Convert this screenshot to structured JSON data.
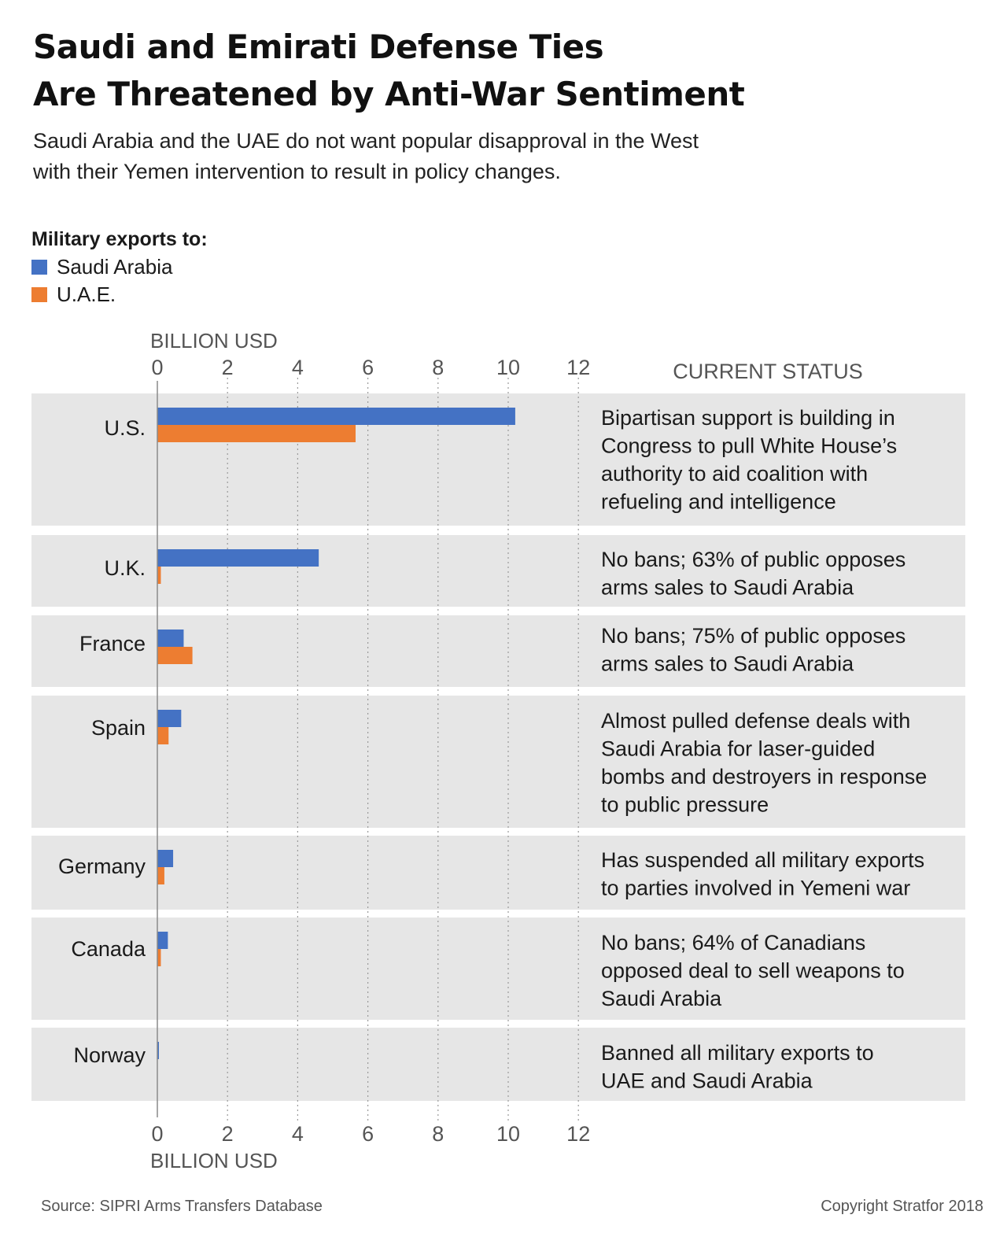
{
  "title_lines": [
    "Saudi and Emirati Defense Ties",
    "Are Threatened by Anti-War Sentiment"
  ],
  "subtitle_lines": [
    "Saudi Arabia and the UAE do not want popular disapproval in the West",
    "with their Yemen intervention to result in policy changes."
  ],
  "legend": {
    "title": "Military exports to:",
    "items": [
      {
        "label": "Saudi Arabia",
        "color": "#4472c4"
      },
      {
        "label": "U.A.E.",
        "color": "#ed7d31"
      }
    ]
  },
  "status_header": "CURRENT STATUS",
  "source": "Source: SIPRI Arms Transfers Database",
  "copyright": "Copyright Stratfor 2018",
  "colors": {
    "row_bg": "#e6e6e6",
    "saudi": "#4472c4",
    "uae": "#ed7d31",
    "axis": "#8a8a8a",
    "grid": "#9a9a9a"
  },
  "chart_data": {
    "type": "bar",
    "orientation": "horizontal",
    "xlabel": "BILLION USD",
    "xlim": [
      0,
      12
    ],
    "xticks": [
      "0",
      "2",
      "4",
      "6",
      "8",
      "10",
      "12"
    ],
    "grid": true,
    "categories": [
      "U.S.",
      "U.K.",
      "France",
      "Spain",
      "Germany",
      "Canada",
      "Norway"
    ],
    "series": [
      {
        "name": "Saudi Arabia",
        "values": [
          10.2,
          4.6,
          0.75,
          0.68,
          0.45,
          0.3,
          0.03
        ]
      },
      {
        "name": "U.A.E.",
        "values": [
          5.65,
          0.1,
          1.0,
          0.32,
          0.2,
          0.1,
          0.0
        ]
      }
    ],
    "status": [
      [
        "Bipartisan support is building in",
        "Congress to pull White House’s",
        "authority to aid coalition with",
        "refueling and intelligence"
      ],
      [
        "No bans; 63% of public opposes",
        "arms sales to Saudi Arabia"
      ],
      [
        "No bans; 75% of public opposes",
        "arms sales to Saudi Arabia"
      ],
      [
        "Almost pulled defense deals with",
        "Saudi Arabia for laser-guided",
        "bombs and destroyers in response",
        "to public pressure"
      ],
      [
        "Has suspended all military exports",
        "to parties involved in Yemeni war"
      ],
      [
        "No bans; 64% of Canadians",
        "opposed deal to sell weapons to",
        "Saudi Arabia"
      ],
      [
        "Banned all military exports to",
        "UAE and Saudi Arabia"
      ]
    ]
  }
}
